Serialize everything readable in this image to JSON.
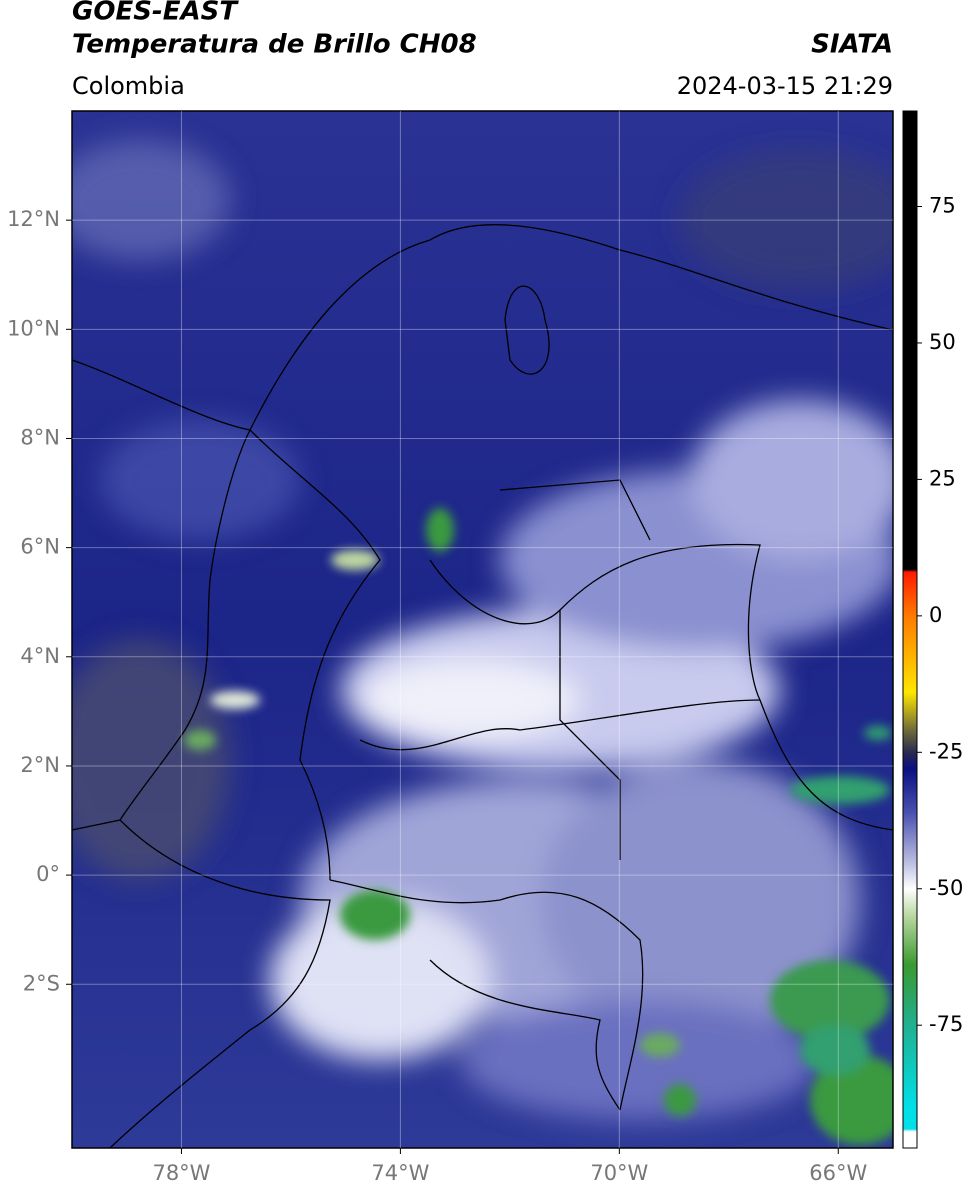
{
  "header": {
    "satellite": "GOES-EAST",
    "product": "Temperatura de Brillo CH08",
    "source": "SIATA",
    "region": "Colombia",
    "datetime": "2024-03-15 21:29"
  },
  "map": {
    "xlim": [
      -80,
      -65
    ],
    "ylim": [
      -5,
      14
    ],
    "xticks": [
      {
        "value": -78,
        "label": "78°W"
      },
      {
        "value": -74,
        "label": "74°W"
      },
      {
        "value": -70,
        "label": "70°W"
      },
      {
        "value": -66,
        "label": "66°W"
      }
    ],
    "yticks": [
      {
        "value": 12,
        "label": "12°N"
      },
      {
        "value": 10,
        "label": "10°N"
      },
      {
        "value": 8,
        "label": "8°N"
      },
      {
        "value": 6,
        "label": "6°N"
      },
      {
        "value": 4,
        "label": "4°N"
      },
      {
        "value": 2,
        "label": "2°N"
      },
      {
        "value": 0,
        "label": "0°"
      },
      {
        "value": -2,
        "label": "2°S"
      }
    ],
    "grid": true
  },
  "colorbar": {
    "lim": [
      -97.5,
      92.5
    ],
    "ticks": [
      75,
      50,
      25,
      0,
      -25,
      -50,
      -75
    ],
    "colors": [
      {
        "value": 92.5,
        "color": "#000000"
      },
      {
        "value": 8.5,
        "color": "#000000"
      },
      {
        "value": 8,
        "color": "#ff1a00"
      },
      {
        "value": 0,
        "color": "#ff7a00"
      },
      {
        "value": -14,
        "color": "#ffe600"
      },
      {
        "value": -21,
        "color": "#6e6a3a"
      },
      {
        "value": -25,
        "color": "#2a2a50"
      },
      {
        "value": -28,
        "color": "#0a1080"
      },
      {
        "value": -36,
        "color": "#4a50b0"
      },
      {
        "value": -45,
        "color": "#b8bce0"
      },
      {
        "value": -50,
        "color": "#ffffff"
      },
      {
        "value": -55,
        "color": "#b8d8a0"
      },
      {
        "value": -64,
        "color": "#3a9a30"
      },
      {
        "value": -75,
        "color": "#20b090"
      },
      {
        "value": -90,
        "color": "#00e0e8"
      },
      {
        "value": -94,
        "color": "#00e0e8"
      },
      {
        "value": -94.5,
        "color": "#ffffff"
      },
      {
        "value": -97.5,
        "color": "#ffffff"
      }
    ]
  }
}
